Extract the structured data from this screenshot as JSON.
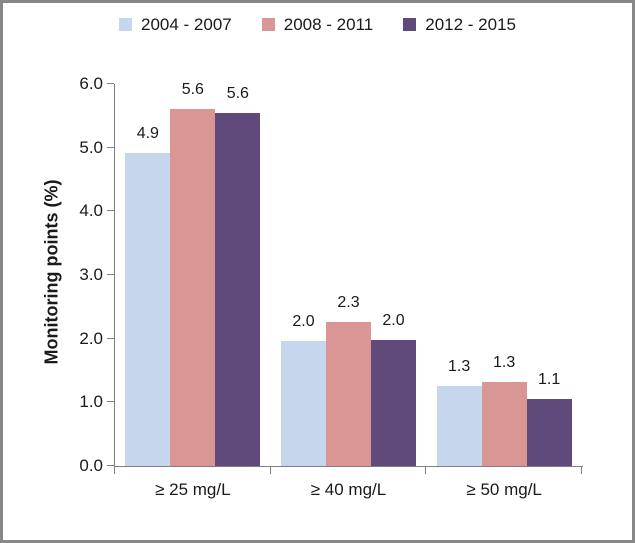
{
  "chart_data": {
    "type": "bar",
    "title": "",
    "xlabel": "",
    "ylabel": "Monitoring points (%)",
    "categories": [
      "≥ 25 mg/L",
      "≥ 40 mg/L",
      "≥ 50 mg/L"
    ],
    "series": [
      {
        "name": "2004 - 2007",
        "color": "#C6D6EC",
        "values": [
          4.9,
          2.0,
          1.3
        ],
        "data_labels": [
          "4.9",
          "2.0",
          "1.3"
        ],
        "bar_values_precise": [
          4.91,
          1.96,
          1.26
        ]
      },
      {
        "name": "2008 - 2011",
        "color": "#D99694",
        "values": [
          5.6,
          2.3,
          1.3
        ],
        "data_labels": [
          "5.6",
          "2.3",
          "1.3"
        ],
        "bar_values_precise": [
          5.6,
          2.26,
          1.32
        ]
      },
      {
        "name": "2012 - 2015",
        "color": "#604A7B",
        "values": [
          5.6,
          2.0,
          1.1
        ],
        "data_labels": [
          "5.6",
          "2.0",
          "1.1"
        ],
        "bar_values_precise": [
          5.55,
          1.98,
          1.05
        ]
      }
    ],
    "ylim": [
      0,
      6
    ],
    "ytick_step": 1.0,
    "yticks": [
      "0.0",
      "1.0",
      "2.0",
      "3.0",
      "4.0",
      "5.0",
      "6.0"
    ],
    "ytick_values": [
      0,
      1,
      2,
      3,
      4,
      5,
      6
    ],
    "grid": false,
    "legend_position": "top",
    "colors": {
      "axis": "#7F7F7F",
      "text": "#1A1A1A",
      "frame_border": "#878787",
      "background": "#FFFFFF"
    }
  }
}
